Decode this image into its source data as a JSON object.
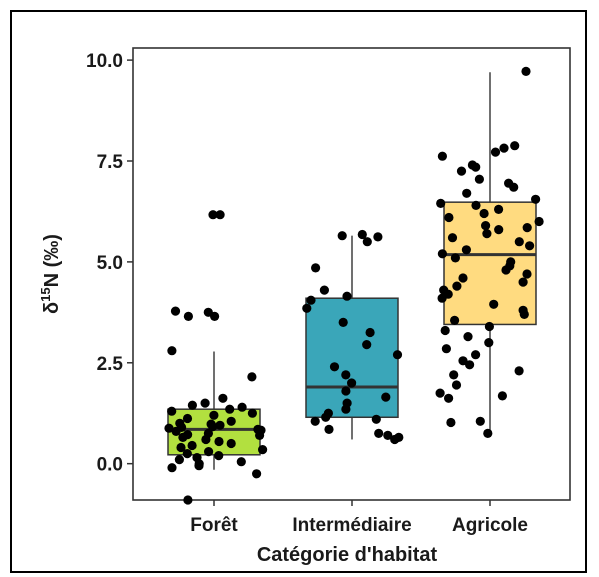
{
  "chart_data": {
    "type": "box",
    "title": "",
    "xlabel": "Catégorie d'habitat",
    "ylabel": {
      "prefix": "δ",
      "superscript": "15",
      "suffix": "N (‰)"
    },
    "categories": [
      "Forêt",
      "Intermédiaire",
      "Agricole"
    ],
    "ylim": [
      -0.9,
      10.3
    ],
    "yticks": [
      "0.0",
      "2.5",
      "5.0",
      "7.5",
      "10.0"
    ],
    "grid": false,
    "legend": "none",
    "boxes": [
      {
        "category": "Forêt",
        "color": "#B2E03F",
        "whisker_low": -0.15,
        "q1": 0.22,
        "median": 0.85,
        "q3": 1.35,
        "whisker_high": 2.78
      },
      {
        "category": "Intermédiaire",
        "color": "#3AA6B9",
        "whisker_low": 0.6,
        "q1": 1.15,
        "median": 1.9,
        "q3": 4.1,
        "whisker_high": 5.65
      },
      {
        "category": "Agricole",
        "color": "#FFDB80",
        "whisker_low": 0.72,
        "q1": 3.45,
        "median": 5.18,
        "q3": 6.48,
        "whisker_high": 9.7
      }
    ],
    "points": [
      {
        "category": "Forêt",
        "y": [
          6.17,
          6.17,
          3.78,
          3.65,
          3.75,
          3.65,
          2.8,
          2.15,
          1.62,
          1.5,
          1.45,
          1.4,
          1.35,
          1.3,
          1.2,
          1.12,
          1.05,
          1.0,
          0.95,
          0.92,
          0.9,
          0.88,
          0.85,
          0.83,
          0.8,
          0.75,
          0.7,
          0.65,
          0.6,
          0.55,
          0.5,
          0.45,
          0.4,
          0.35,
          0.3,
          0.25,
          0.2,
          0.15,
          0.1,
          0.05,
          0.0,
          -0.05,
          -0.1,
          -0.25,
          -0.9,
          1.25,
          0.98,
          0.72
        ]
      },
      {
        "category": "Intermédiaire",
        "y": [
          5.68,
          5.65,
          5.62,
          5.5,
          4.85,
          4.3,
          4.15,
          4.05,
          3.85,
          3.5,
          3.25,
          2.95,
          2.7,
          2.4,
          2.2,
          2.0,
          1.8,
          1.65,
          1.5,
          1.35,
          1.25,
          1.15,
          1.1,
          1.05,
          0.85,
          0.75,
          0.7,
          0.65,
          0.6
        ]
      },
      {
        "category": "Agricole",
        "y": [
          9.72,
          7.88,
          7.82,
          7.72,
          7.62,
          7.4,
          7.35,
          7.25,
          7.05,
          6.95,
          6.85,
          6.7,
          6.55,
          6.45,
          6.4,
          6.3,
          6.2,
          6.1,
          6.0,
          5.9,
          5.85,
          5.8,
          5.7,
          5.6,
          5.5,
          5.4,
          5.3,
          5.2,
          5.1,
          5.0,
          4.9,
          4.8,
          4.7,
          4.6,
          4.5,
          4.4,
          4.3,
          4.2,
          4.1,
          3.95,
          3.8,
          3.7,
          3.55,
          3.4,
          3.3,
          3.15,
          3.0,
          2.85,
          2.7,
          2.55,
          2.45,
          2.3,
          2.2,
          1.95,
          1.75,
          1.68,
          1.62,
          1.05,
          1.02,
          0.75
        ]
      }
    ]
  }
}
